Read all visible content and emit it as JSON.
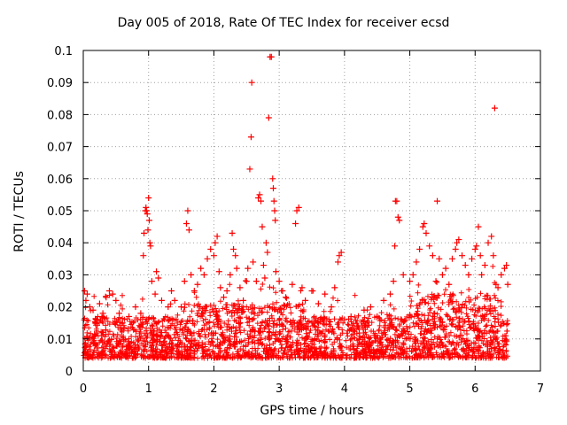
{
  "chart_data": {
    "type": "scatter",
    "title": "Day 005 of 2018, Rate Of TEC Index for receiver ecsd",
    "xlabel": "GPS time / hours",
    "ylabel": "ROTI / TECUs",
    "xlim": [
      0,
      7
    ],
    "ylim": [
      0,
      0.1
    ],
    "xticks": [
      "0",
      "1",
      "2",
      "3",
      "4",
      "5",
      "6",
      "7"
    ],
    "yticks": [
      "0",
      "0.01",
      "0.02",
      "0.03",
      "0.04",
      "0.05",
      "0.06",
      "0.07",
      "0.08",
      "0.09",
      "0.1"
    ],
    "grid": true,
    "marker": "+",
    "marker_color": "#ff0000",
    "series": [
      {
        "name": "ROTI",
        "points": [
          [
            0.02,
            0.025
          ],
          [
            0.04,
            0.022
          ],
          [
            0.06,
            0.024
          ],
          [
            0.1,
            0.02
          ],
          [
            0.15,
            0.019
          ],
          [
            0.2,
            0.016
          ],
          [
            0.25,
            0.021
          ],
          [
            0.3,
            0.018
          ],
          [
            0.35,
            0.023
          ],
          [
            0.4,
            0.025
          ],
          [
            0.45,
            0.024
          ],
          [
            0.5,
            0.022
          ],
          [
            0.55,
            0.018
          ],
          [
            0.6,
            0.015
          ],
          [
            0.7,
            0.017
          ],
          [
            0.8,
            0.02
          ],
          [
            0.88,
            0.018
          ],
          [
            0.92,
            0.036
          ],
          [
            0.93,
            0.043
          ],
          [
            0.95,
            0.05
          ],
          [
            0.96,
            0.051
          ],
          [
            0.97,
            0.05
          ],
          [
            0.98,
            0.049
          ],
          [
            0.99,
            0.044
          ],
          [
            1.0,
            0.054
          ],
          [
            1.01,
            0.047
          ],
          [
            1.02,
            0.04
          ],
          [
            1.03,
            0.039
          ],
          [
            1.05,
            0.028
          ],
          [
            1.1,
            0.024
          ],
          [
            1.12,
            0.031
          ],
          [
            1.15,
            0.029
          ],
          [
            1.2,
            0.022
          ],
          [
            1.3,
            0.02
          ],
          [
            1.35,
            0.025
          ],
          [
            1.4,
            0.022
          ],
          [
            1.5,
            0.02
          ],
          [
            1.55,
            0.028
          ],
          [
            1.58,
            0.046
          ],
          [
            1.6,
            0.05
          ],
          [
            1.62,
            0.044
          ],
          [
            1.65,
            0.03
          ],
          [
            1.7,
            0.025
          ],
          [
            1.75,
            0.027
          ],
          [
            1.8,
            0.032
          ],
          [
            1.85,
            0.03
          ],
          [
            1.9,
            0.035
          ],
          [
            1.95,
            0.038
          ],
          [
            2.0,
            0.036
          ],
          [
            2.02,
            0.04
          ],
          [
            2.05,
            0.042
          ],
          [
            2.08,
            0.031
          ],
          [
            2.1,
            0.026
          ],
          [
            2.15,
            0.023
          ],
          [
            2.2,
            0.025
          ],
          [
            2.25,
            0.03
          ],
          [
            2.28,
            0.043
          ],
          [
            2.3,
            0.038
          ],
          [
            2.33,
            0.036
          ],
          [
            2.35,
            0.032
          ],
          [
            2.4,
            0.026
          ],
          [
            2.45,
            0.022
          ],
          [
            2.5,
            0.028
          ],
          [
            2.52,
            0.032
          ],
          [
            2.55,
            0.063
          ],
          [
            2.57,
            0.073
          ],
          [
            2.58,
            0.09
          ],
          [
            2.6,
            0.034
          ],
          [
            2.65,
            0.028
          ],
          [
            2.68,
            0.054
          ],
          [
            2.7,
            0.055
          ],
          [
            2.72,
            0.053
          ],
          [
            2.74,
            0.045
          ],
          [
            2.76,
            0.033
          ],
          [
            2.78,
            0.029
          ],
          [
            2.8,
            0.04
          ],
          [
            2.82,
            0.037
          ],
          [
            2.84,
            0.079
          ],
          [
            2.86,
            0.098
          ],
          [
            2.88,
            0.098
          ],
          [
            2.9,
            0.06
          ],
          [
            2.91,
            0.057
          ],
          [
            2.92,
            0.053
          ],
          [
            2.93,
            0.05
          ],
          [
            2.94,
            0.047
          ],
          [
            2.95,
            0.031
          ],
          [
            3.0,
            0.028
          ],
          [
            3.05,
            0.025
          ],
          [
            3.1,
            0.023
          ],
          [
            3.2,
            0.027
          ],
          [
            3.25,
            0.046
          ],
          [
            3.27,
            0.05
          ],
          [
            3.3,
            0.051
          ],
          [
            3.35,
            0.026
          ],
          [
            3.4,
            0.022
          ],
          [
            3.5,
            0.025
          ],
          [
            3.6,
            0.021
          ],
          [
            3.7,
            0.024
          ],
          [
            3.8,
            0.02
          ],
          [
            3.85,
            0.026
          ],
          [
            3.9,
            0.034
          ],
          [
            3.92,
            0.036
          ],
          [
            3.95,
            0.037
          ],
          [
            4.0,
            0.016
          ],
          [
            4.1,
            0.017
          ],
          [
            4.2,
            0.014
          ],
          [
            4.3,
            0.019
          ],
          [
            4.4,
            0.02
          ],
          [
            4.5,
            0.017
          ],
          [
            4.6,
            0.022
          ],
          [
            4.7,
            0.024
          ],
          [
            4.75,
            0.028
          ],
          [
            4.77,
            0.039
          ],
          [
            4.78,
            0.053
          ],
          [
            4.8,
            0.053
          ],
          [
            4.82,
            0.048
          ],
          [
            4.84,
            0.047
          ],
          [
            4.9,
            0.03
          ],
          [
            5.0,
            0.028
          ],
          [
            5.05,
            0.03
          ],
          [
            5.1,
            0.034
          ],
          [
            5.15,
            0.038
          ],
          [
            5.2,
            0.045
          ],
          [
            5.22,
            0.046
          ],
          [
            5.25,
            0.043
          ],
          [
            5.3,
            0.039
          ],
          [
            5.35,
            0.036
          ],
          [
            5.4,
            0.028
          ],
          [
            5.42,
            0.053
          ],
          [
            5.45,
            0.035
          ],
          [
            5.5,
            0.03
          ],
          [
            5.55,
            0.032
          ],
          [
            5.6,
            0.027
          ],
          [
            5.65,
            0.035
          ],
          [
            5.7,
            0.038
          ],
          [
            5.72,
            0.04
          ],
          [
            5.75,
            0.041
          ],
          [
            5.8,
            0.036
          ],
          [
            5.85,
            0.033
          ],
          [
            5.9,
            0.03
          ],
          [
            5.95,
            0.035
          ],
          [
            6.0,
            0.038
          ],
          [
            6.02,
            0.039
          ],
          [
            6.05,
            0.045
          ],
          [
            6.08,
            0.036
          ],
          [
            6.1,
            0.03
          ],
          [
            6.15,
            0.033
          ],
          [
            6.2,
            0.04
          ],
          [
            6.25,
            0.042
          ],
          [
            6.28,
            0.036
          ],
          [
            6.3,
            0.082
          ],
          [
            6.32,
            0.027
          ],
          [
            6.35,
            0.026
          ],
          [
            6.4,
            0.03
          ],
          [
            6.45,
            0.032
          ],
          [
            6.48,
            0.033
          ],
          [
            6.5,
            0.027
          ],
          [
            0.3,
            0.012
          ],
          [
            1.2,
            0.012
          ],
          [
            2.6,
            0.013
          ]
        ]
      }
    ]
  }
}
